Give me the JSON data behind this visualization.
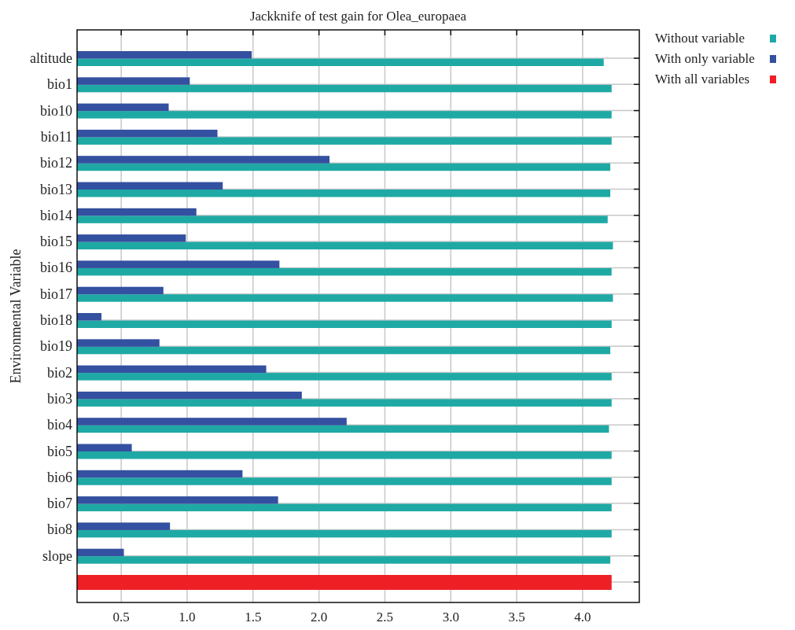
{
  "chart_data": {
    "type": "bar",
    "orientation": "horizontal",
    "title": "Jackknife of test gain for Olea_europaea",
    "ylabel": "Environmental Variable",
    "categories": [
      "altitude",
      "bio1",
      "bio10",
      "bio11",
      "bio12",
      "bio13",
      "bio14",
      "bio15",
      "bio16",
      "bio17",
      "bio18",
      "bio19",
      "bio2",
      "bio3",
      "bio4",
      "bio5",
      "bio6",
      "bio7",
      "bio8",
      "slope",
      null
    ],
    "series": [
      {
        "name": "Without variable",
        "color": "#1fa9a5",
        "values": [
          4.16,
          4.22,
          4.22,
          4.22,
          4.21,
          4.21,
          4.19,
          4.23,
          4.22,
          4.23,
          4.22,
          4.21,
          4.22,
          4.22,
          4.2,
          4.22,
          4.22,
          4.22,
          4.22,
          4.21,
          null
        ]
      },
      {
        "name": "With only variable",
        "color": "#3450a0",
        "values": [
          1.49,
          1.02,
          0.86,
          1.23,
          2.08,
          1.27,
          1.07,
          0.99,
          1.7,
          0.82,
          0.35,
          0.79,
          1.6,
          1.87,
          2.21,
          0.58,
          1.42,
          1.69,
          0.87,
          0.52,
          null
        ]
      },
      {
        "name": "With all variables",
        "color": "#ee2026",
        "values": [
          null,
          null,
          null,
          null,
          null,
          null,
          null,
          null,
          null,
          null,
          null,
          null,
          null,
          null,
          null,
          null,
          null,
          null,
          null,
          null,
          4.22
        ]
      }
    ],
    "xlim": [
      0.165,
      4.43
    ],
    "xticks": [
      0.5,
      {
        "value": 1,
        "label": "1.0"
      },
      1.5,
      {
        "value": 2,
        "label": "2.0"
      },
      2.5,
      {
        "value": 3,
        "label": "3.0"
      },
      3.5,
      {
        "value": 4,
        "label": "4.0"
      }
    ],
    "grid": true,
    "legend": "top right"
  }
}
